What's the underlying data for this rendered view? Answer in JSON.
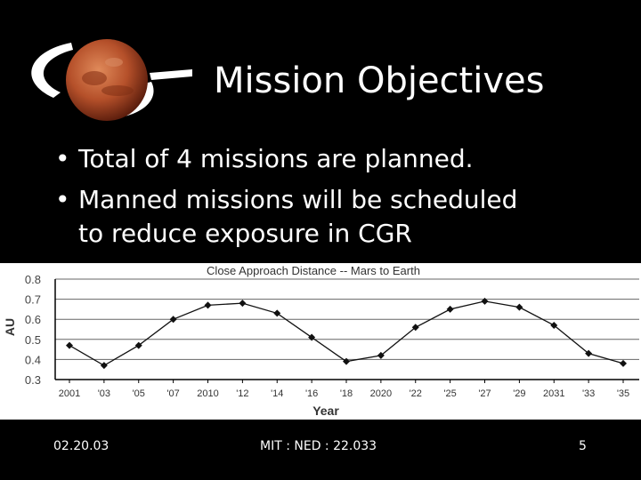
{
  "slide": {
    "title": "Mission Objectives",
    "bullets": [
      {
        "symbol": "•",
        "text": "Total of 4 missions are planned."
      },
      {
        "symbol": "•",
        "text": "Manned missions will be scheduled",
        "continuation": "to reduce exposure in CGR"
      }
    ]
  },
  "logo": {
    "icon": "mars-planet-orbit-icon",
    "planet_color": "#b5502a",
    "ring_color": "#ffffff"
  },
  "footer": {
    "date": "02.20.03",
    "course": "MIT : NED : 22.033",
    "page": "5"
  },
  "colors": {
    "background": "#000000",
    "text": "#ffffff",
    "chart_background": "#ffffff",
    "line": "#000000"
  },
  "chart_data": {
    "type": "line",
    "title": "Close Approach Distance -- Mars to Earth",
    "xlabel": "Year",
    "ylabel": "AU",
    "categories": [
      "2001",
      "'03",
      "'05",
      "'07",
      "2010",
      "'12",
      "'14",
      "'16",
      "'18",
      "2020",
      "'22",
      "'25",
      "'27",
      "'29",
      "2031",
      "'33",
      "'35"
    ],
    "values": [
      0.47,
      0.37,
      0.47,
      0.6,
      0.67,
      0.68,
      0.63,
      0.51,
      0.39,
      0.42,
      0.56,
      0.65,
      0.69,
      0.66,
      0.57,
      0.43,
      0.38
    ],
    "ylim": [
      0.3,
      0.8
    ],
    "yticks": [
      "0.8",
      "0.7",
      "0.6",
      "0.5",
      "0.4",
      "0.3"
    ],
    "grid": true
  }
}
